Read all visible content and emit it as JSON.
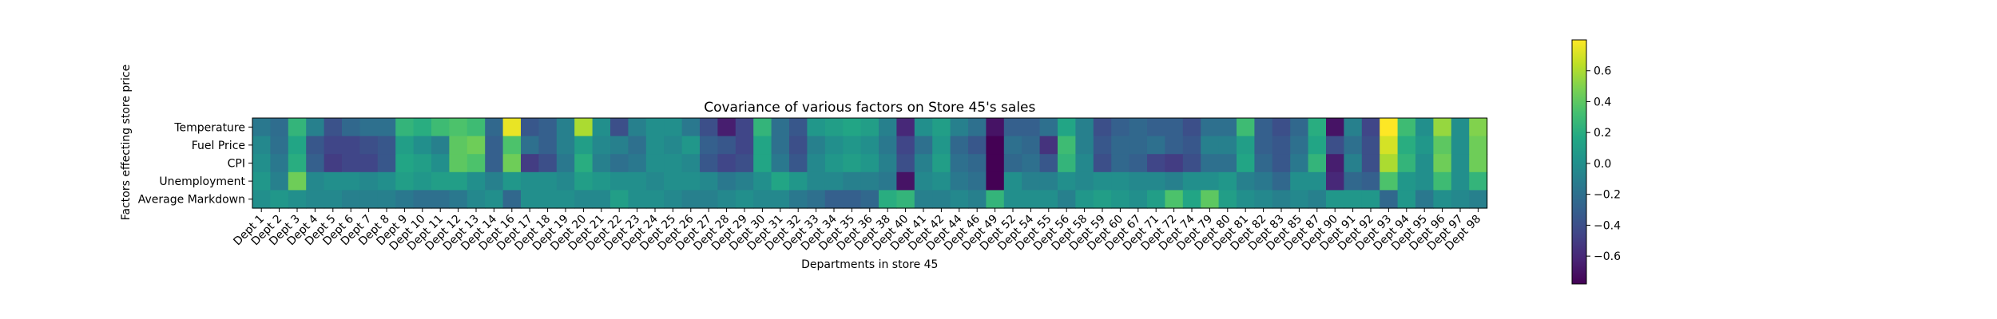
{
  "chart_data": {
    "type": "heatmap",
    "title": "Covariance of various factors on Store 45's sales",
    "xlabel": "Departments in store 45",
    "ylabel": "Factors effecting store price",
    "colormap": "viridis",
    "colorbar": {
      "vmin": -0.78,
      "vmax": 0.8,
      "ticks": [
        -0.6,
        -0.4,
        -0.2,
        0.0,
        0.2,
        0.4,
        0.6
      ],
      "tick_labels": [
        "−0.6",
        "−0.4",
        "−0.2",
        "0.0",
        "0.2",
        "0.4",
        "0.6"
      ]
    },
    "rows": [
      "Temperature",
      "Fuel Price",
      "CPI",
      "Unemployment",
      "Average Markdown"
    ],
    "columns": [
      "Dept 1",
      "Dept 2",
      "Dept 3",
      "Dept 4",
      "Dept 5",
      "Dept 6",
      "Dept 7",
      "Dept 8",
      "Dept 9",
      "Dept 10",
      "Dept 11",
      "Dept 12",
      "Dept 13",
      "Dept 14",
      "Dept 16",
      "Dept 17",
      "Dept 18",
      "Dept 19",
      "Dept 20",
      "Dept 21",
      "Dept 22",
      "Dept 23",
      "Dept 24",
      "Dept 25",
      "Dept 26",
      "Dept 27",
      "Dept 28",
      "Dept 29",
      "Dept 30",
      "Dept 31",
      "Dept 32",
      "Dept 33",
      "Dept 34",
      "Dept 35",
      "Dept 36",
      "Dept 38",
      "Dept 40",
      "Dept 41",
      "Dept 42",
      "Dept 44",
      "Dept 46",
      "Dept 49",
      "Dept 52",
      "Dept 54",
      "Dept 55",
      "Dept 56",
      "Dept 58",
      "Dept 59",
      "Dept 60",
      "Dept 67",
      "Dept 71",
      "Dept 72",
      "Dept 74",
      "Dept 79",
      "Dept 80",
      "Dept 81",
      "Dept 82",
      "Dept 83",
      "Dept 85",
      "Dept 87",
      "Dept 90",
      "Dept 91",
      "Dept 92",
      "Dept 93",
      "Dept 94",
      "Dept 95",
      "Dept 96",
      "Dept 97",
      "Dept 98"
    ],
    "values": [
      [
        -0.15,
        -0.22,
        0.25,
        -0.1,
        -0.38,
        -0.25,
        -0.2,
        -0.2,
        0.25,
        0.2,
        0.3,
        0.35,
        0.3,
        -0.25,
        0.75,
        -0.35,
        -0.3,
        -0.1,
        0.6,
        0.0,
        -0.4,
        -0.1,
        0.0,
        0.0,
        -0.15,
        -0.4,
        -0.65,
        -0.45,
        0.25,
        -0.2,
        -0.35,
        0.05,
        0.1,
        0.15,
        0.1,
        -0.1,
        -0.6,
        0.0,
        0.1,
        -0.1,
        -0.2,
        -0.7,
        -0.3,
        -0.3,
        -0.2,
        0.15,
        -0.1,
        -0.4,
        -0.3,
        -0.25,
        -0.3,
        -0.3,
        -0.4,
        -0.2,
        -0.2,
        0.3,
        -0.3,
        -0.4,
        -0.25,
        0.2,
        -0.7,
        -0.1,
        -0.45,
        0.8,
        0.3,
        0.0,
        0.55,
        0.0,
        0.5
      ],
      [
        -0.05,
        -0.2,
        0.15,
        -0.35,
        -0.45,
        -0.45,
        -0.4,
        -0.35,
        0.1,
        0.0,
        -0.1,
        0.4,
        0.45,
        -0.3,
        0.35,
        -0.2,
        -0.3,
        -0.1,
        0.1,
        -0.05,
        -0.1,
        -0.2,
        0.0,
        -0.05,
        0.05,
        -0.3,
        -0.35,
        -0.45,
        0.15,
        -0.2,
        -0.4,
        -0.1,
        0.0,
        0.05,
        0.0,
        -0.15,
        -0.45,
        -0.2,
        0.05,
        -0.25,
        -0.35,
        -0.78,
        -0.2,
        -0.25,
        -0.55,
        0.3,
        -0.1,
        -0.35,
        -0.25,
        -0.25,
        -0.2,
        -0.3,
        -0.35,
        -0.1,
        -0.1,
        0.1,
        -0.3,
        -0.35,
        -0.2,
        0.15,
        -0.4,
        -0.2,
        -0.4,
        0.7,
        0.2,
        0.05,
        0.4,
        0.0,
        0.45
      ],
      [
        0.0,
        -0.15,
        0.2,
        -0.3,
        -0.5,
        -0.45,
        -0.45,
        -0.35,
        0.15,
        0.1,
        0.0,
        0.4,
        0.35,
        -0.3,
        0.45,
        -0.5,
        -0.4,
        -0.15,
        0.2,
        -0.1,
        -0.2,
        -0.15,
        0.0,
        0.0,
        -0.05,
        -0.35,
        -0.45,
        -0.4,
        0.15,
        -0.15,
        -0.35,
        -0.05,
        0.05,
        0.1,
        0.05,
        -0.1,
        -0.4,
        -0.1,
        0.1,
        -0.2,
        -0.25,
        -0.78,
        -0.25,
        -0.2,
        -0.35,
        0.25,
        -0.05,
        -0.4,
        -0.25,
        -0.3,
        -0.45,
        -0.5,
        -0.4,
        -0.2,
        -0.2,
        0.15,
        -0.25,
        -0.35,
        -0.15,
        0.25,
        -0.65,
        -0.1,
        -0.4,
        0.6,
        0.25,
        0.0,
        0.45,
        0.0,
        0.45
      ],
      [
        0.05,
        -0.1,
        0.45,
        -0.05,
        0.0,
        0.0,
        -0.05,
        0.0,
        0.1,
        0.05,
        0.1,
        0.1,
        0.0,
        -0.1,
        0.05,
        0.0,
        0.0,
        -0.05,
        0.1,
        0.05,
        0.0,
        0.0,
        -0.05,
        0.0,
        0.0,
        -0.05,
        -0.15,
        -0.1,
        0.0,
        0.15,
        0.05,
        -0.05,
        -0.05,
        -0.1,
        -0.1,
        -0.15,
        -0.7,
        -0.05,
        0.0,
        -0.15,
        -0.2,
        -0.78,
        0.0,
        -0.1,
        -0.1,
        0.0,
        -0.05,
        0.0,
        0.0,
        -0.05,
        -0.05,
        -0.1,
        0.0,
        0.0,
        0.05,
        -0.1,
        -0.15,
        -0.25,
        0.0,
        0.0,
        -0.6,
        -0.25,
        -0.3,
        0.35,
        0.05,
        0.0,
        0.3,
        0.0,
        0.25
      ],
      [
        0.0,
        0.05,
        0.0,
        -0.05,
        -0.05,
        -0.1,
        -0.1,
        -0.1,
        -0.15,
        -0.2,
        -0.2,
        -0.15,
        -0.05,
        0.0,
        -0.25,
        0.0,
        0.0,
        0.0,
        -0.05,
        -0.05,
        0.1,
        0.0,
        0.0,
        -0.05,
        -0.1,
        -0.1,
        -0.05,
        0.0,
        -0.05,
        -0.05,
        -0.15,
        -0.2,
        -0.3,
        -0.3,
        -0.25,
        0.2,
        0.25,
        -0.1,
        -0.1,
        -0.05,
        -0.1,
        0.25,
        0.0,
        0.0,
        0.0,
        -0.1,
        0.05,
        0.1,
        0.05,
        0.0,
        0.1,
        0.35,
        0.15,
        0.4,
        0.1,
        0.0,
        -0.05,
        -0.1,
        -0.05,
        -0.1,
        0.05,
        0.05,
        0.05,
        -0.25,
        0.05,
        -0.15,
        0.0,
        -0.05,
        -0.1
      ]
    ]
  }
}
